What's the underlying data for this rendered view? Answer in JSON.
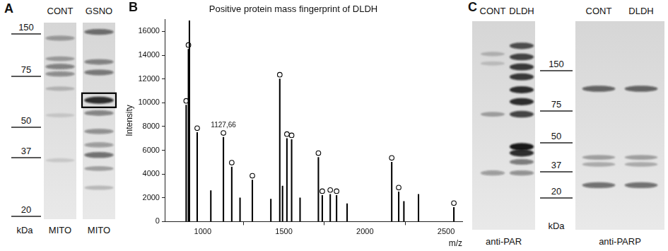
{
  "panel_labels": [
    "A",
    "B",
    "C"
  ],
  "panel_A": {
    "lanes": [
      "CONT",
      "GSNO"
    ],
    "lane_samples": [
      "MITO",
      "MITO"
    ],
    "unit": "kDa",
    "markers": [
      150,
      75,
      50,
      37,
      20
    ],
    "bands": [
      [
        [
          140,
          0.35
        ],
        [
          100,
          0.3
        ],
        [
          88,
          0.45
        ],
        [
          78,
          0.4
        ],
        [
          68,
          0.2
        ],
        [
          55,
          0.12
        ],
        [
          36,
          0.12
        ]
      ],
      [
        [
          155,
          0.55
        ],
        [
          95,
          0.45
        ],
        [
          80,
          0.5
        ],
        [
          62,
          0.85
        ],
        [
          56,
          0.45
        ],
        [
          48,
          0.4
        ],
        [
          42,
          0.35
        ],
        [
          38,
          0.55
        ],
        [
          33,
          0.3
        ],
        [
          27,
          0.2
        ]
      ]
    ],
    "highlight": {
      "lane": 1,
      "kda": 62
    }
  },
  "chart_data": {
    "type": "bar",
    "title": "Positive protein mass fingerprint of DLDH",
    "x_label": "m/z",
    "y_label": "Intensity",
    "x": [
      898,
      912,
      918,
      966,
      1050,
      1127.66,
      1179,
      1230,
      1306,
      1420,
      1475,
      1492,
      1519,
      1548,
      1600,
      1713,
      1737,
      1786,
      1825,
      1890,
      2165,
      2208,
      2240,
      2330,
      2548
    ],
    "values": [
      9800,
      14500,
      16900,
      7500,
      2600,
      7100,
      4600,
      2000,
      3500,
      1900,
      12000,
      3000,
      7000,
      6900,
      2000,
      5400,
      2200,
      2300,
      2200,
      1500,
      5000,
      2500,
      1700,
      2300,
      1200
    ],
    "marked": [
      true,
      true,
      false,
      true,
      false,
      true,
      true,
      false,
      true,
      false,
      true,
      false,
      true,
      true,
      false,
      true,
      true,
      true,
      true,
      false,
      true,
      true,
      false,
      false,
      true
    ],
    "marker": "circle",
    "annotations": [
      {
        "x": 1127.66,
        "text": "1127,66"
      }
    ],
    "color": "#000000",
    "xlim": [
      770,
      2600
    ],
    "xticks": [
      1000,
      1500,
      2000,
      2500
    ],
    "ylim": [
      0,
      17000
    ],
    "yticks": [
      0,
      2000,
      4000,
      6000,
      8000,
      10000,
      12000,
      14000,
      16000
    ],
    "grid": false
  },
  "panel_C": {
    "unit": "kDa",
    "markers": [
      150,
      75,
      50,
      37,
      20
    ],
    "blots": [
      {
        "antibody": "anti-PAR",
        "lanes": [
          "CONT",
          "DLDH"
        ],
        "bands": [
          [
            [
              200,
              0.2
            ],
            [
              170,
              0.15
            ],
            [
              72,
              0.3
            ],
            [
              36,
              0.35
            ]
          ],
          [
            [
              230,
              0.7
            ],
            [
              190,
              0.75
            ],
            [
              160,
              0.8
            ],
            [
              135,
              0.8
            ],
            [
              108,
              0.85
            ],
            [
              88,
              0.85
            ],
            [
              72,
              0.75
            ],
            [
              48,
              0.95
            ],
            [
              45,
              0.85
            ],
            [
              41,
              0.5
            ],
            [
              36,
              0.4
            ]
          ]
        ]
      },
      {
        "antibody": "anti-PARP",
        "lanes": [
          "CONT",
          "DLDH"
        ],
        "bands": [
          [
            [
              110,
              0.6
            ],
            [
              43,
              0.3
            ],
            [
              40,
              0.25
            ],
            [
              27,
              0.55
            ]
          ],
          [
            [
              110,
              0.6
            ],
            [
              43,
              0.3
            ],
            [
              40,
              0.25
            ],
            [
              27,
              0.55
            ]
          ]
        ]
      }
    ]
  }
}
